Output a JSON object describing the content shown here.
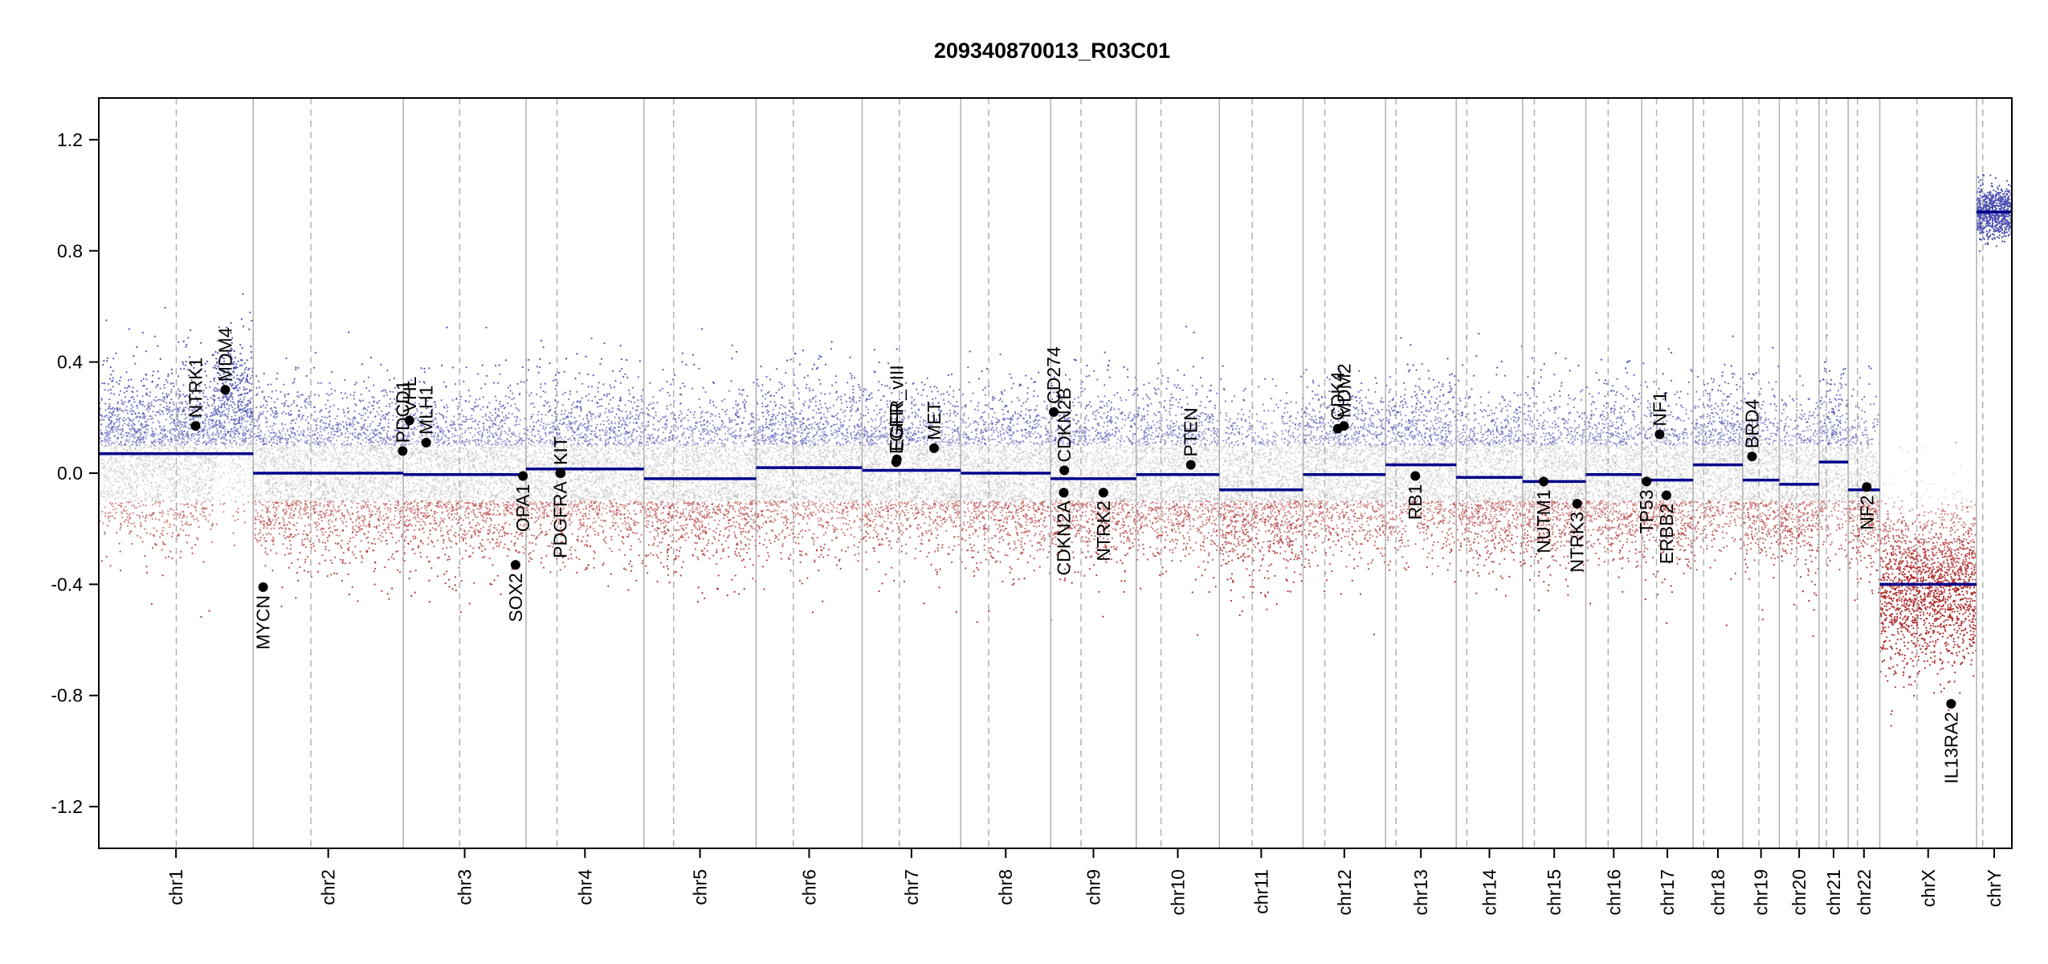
{
  "chart_data": {
    "type": "scatter",
    "title": "209340870013_R03C01",
    "ylim": [
      -1.35,
      1.35
    ],
    "y_ticks": [
      "1.2",
      "0.8",
      "0.4",
      "0.0",
      "-0.4",
      "-0.8",
      "-1.2"
    ],
    "y_tick_values": [
      1.2,
      0.8,
      0.4,
      0.0,
      -0.4,
      -0.8,
      -1.2
    ],
    "grid": "vertical chromosome boundaries (solid) and centromeres (dashed)",
    "colors": {
      "gain": "#4a4fb0",
      "neutral": "#b8b8b8",
      "loss": "#b03030",
      "segment": "#00008b",
      "border": "#000000"
    },
    "chromosomes": [
      {
        "name": "chr1",
        "length": 249,
        "centromere": 125,
        "segment": 0.07,
        "spread": 0.14
      },
      {
        "name": "chr2",
        "length": 242,
        "centromere": 93,
        "segment": 0.0,
        "spread": 0.14
      },
      {
        "name": "chr3",
        "length": 198,
        "centromere": 91,
        "segment": -0.005,
        "spread": 0.14
      },
      {
        "name": "chr4",
        "length": 190,
        "centromere": 50,
        "segment": 0.015,
        "spread": 0.14
      },
      {
        "name": "chr5",
        "length": 181,
        "centromere": 48,
        "segment": -0.02,
        "spread": 0.14
      },
      {
        "name": "chr6",
        "length": 171,
        "centromere": 60,
        "segment": 0.02,
        "spread": 0.14
      },
      {
        "name": "chr7",
        "length": 159,
        "centromere": 60,
        "segment": 0.01,
        "spread": 0.14
      },
      {
        "name": "chr8",
        "length": 145,
        "centromere": 45,
        "segment": 0.0,
        "spread": 0.14
      },
      {
        "name": "chr9",
        "length": 138,
        "centromere": 49,
        "segment": -0.02,
        "spread": 0.14
      },
      {
        "name": "chr10",
        "length": 134,
        "centromere": 40,
        "segment": -0.005,
        "spread": 0.14
      },
      {
        "name": "chr11",
        "length": 135,
        "centromere": 53,
        "segment": -0.06,
        "spread": 0.14
      },
      {
        "name": "chr12",
        "length": 133,
        "centromere": 35,
        "segment": -0.005,
        "spread": 0.14
      },
      {
        "name": "chr13",
        "length": 114,
        "centromere": 17,
        "segment": 0.03,
        "spread": 0.14
      },
      {
        "name": "chr14",
        "length": 107,
        "centromere": 17,
        "segment": -0.015,
        "spread": 0.14
      },
      {
        "name": "chr15",
        "length": 102,
        "centromere": 19,
        "segment": -0.03,
        "spread": 0.14
      },
      {
        "name": "chr16",
        "length": 90,
        "centromere": 36,
        "segment": -0.005,
        "spread": 0.14
      },
      {
        "name": "chr17",
        "length": 83,
        "centromere": 24,
        "segment": -0.025,
        "spread": 0.14
      },
      {
        "name": "chr18",
        "length": 80,
        "centromere": 17,
        "segment": 0.03,
        "spread": 0.14
      },
      {
        "name": "chr19",
        "length": 59,
        "centromere": 26,
        "segment": -0.025,
        "spread": 0.14
      },
      {
        "name": "chr20",
        "length": 64,
        "centromere": 28,
        "segment": -0.04,
        "spread": 0.14
      },
      {
        "name": "chr21",
        "length": 47,
        "centromere": 12,
        "segment": 0.04,
        "spread": 0.14
      },
      {
        "name": "chr22",
        "length": 51,
        "centromere": 15,
        "segment": -0.06,
        "spread": 0.14
      },
      {
        "name": "chrX",
        "length": 156,
        "centromere": 60,
        "segment": -0.4,
        "spread": 0.15
      },
      {
        "name": "chrY",
        "length": 57,
        "centromere": 10,
        "segment": 0.94,
        "spread": 0.05
      }
    ],
    "genes": [
      {
        "name": "NTRK1",
        "chrom": "chr1",
        "pos": 156,
        "value": 0.17,
        "label": "above"
      },
      {
        "name": "MDM4",
        "chrom": "chr1",
        "pos": 204,
        "value": 0.3,
        "label": "above"
      },
      {
        "name": "MYCN",
        "chrom": "chr2",
        "pos": 16,
        "value": -0.41,
        "label": "below"
      },
      {
        "name": "PDCD1",
        "chrom": "chr2",
        "pos": 241,
        "value": 0.08,
        "label": "above"
      },
      {
        "name": "VHL",
        "chrom": "chr3",
        "pos": 10,
        "value": 0.19,
        "label": "above"
      },
      {
        "name": "MLH1",
        "chrom": "chr3",
        "pos": 37,
        "value": 0.11,
        "label": "above"
      },
      {
        "name": "SOX2",
        "chrom": "chr3",
        "pos": 181,
        "value": -0.33,
        "label": "below"
      },
      {
        "name": "OPA1",
        "chrom": "chr3",
        "pos": 193,
        "value": -0.01,
        "label": "below"
      },
      {
        "name": "PDGFRA",
        "chrom": "chr4",
        "pos": 55,
        "value": 0.0,
        "label": "below"
      },
      {
        "name": "KIT",
        "chrom": "chr4",
        "pos": 56,
        "value": 0.0,
        "label": "above"
      },
      {
        "name": "EGFR",
        "chrom": "chr7",
        "pos": 55,
        "value": 0.04,
        "label": "above"
      },
      {
        "name": "EGFR_vIII",
        "chrom": "chr7",
        "pos": 56,
        "value": 0.05,
        "label": "above"
      },
      {
        "name": "MET",
        "chrom": "chr7",
        "pos": 116,
        "value": 0.09,
        "label": "above"
      },
      {
        "name": "CD274",
        "chrom": "chr9",
        "pos": 5,
        "value": 0.22,
        "label": "above"
      },
      {
        "name": "CDKN2B",
        "chrom": "chr9",
        "pos": 22,
        "value": 0.01,
        "label": "above"
      },
      {
        "name": "CDKN2A",
        "chrom": "chr9",
        "pos": 21,
        "value": -0.07,
        "label": "below"
      },
      {
        "name": "NTRK2",
        "chrom": "chr9",
        "pos": 85,
        "value": -0.07,
        "label": "below"
      },
      {
        "name": "PTEN",
        "chrom": "chr10",
        "pos": 88,
        "value": 0.03,
        "label": "above"
      },
      {
        "name": "CDK4",
        "chrom": "chr12",
        "pos": 56,
        "value": 0.16,
        "label": "above"
      },
      {
        "name": "MDM2",
        "chrom": "chr12",
        "pos": 66,
        "value": 0.17,
        "label": "above"
      },
      {
        "name": "RB1",
        "chrom": "chr13",
        "pos": 48,
        "value": -0.01,
        "label": "below"
      },
      {
        "name": "NUTM1",
        "chrom": "chr15",
        "pos": 34,
        "value": -0.03,
        "label": "below"
      },
      {
        "name": "NTRK3",
        "chrom": "chr15",
        "pos": 88,
        "value": -0.11,
        "label": "below"
      },
      {
        "name": "TP53",
        "chrom": "chr17",
        "pos": 8,
        "value": -0.03,
        "label": "below"
      },
      {
        "name": "NF1",
        "chrom": "chr17",
        "pos": 29,
        "value": 0.14,
        "label": "above"
      },
      {
        "name": "ERBB2",
        "chrom": "chr17",
        "pos": 40,
        "value": -0.08,
        "label": "below"
      },
      {
        "name": "BRD4",
        "chrom": "chr19",
        "pos": 15,
        "value": 0.06,
        "label": "above"
      },
      {
        "name": "NF2",
        "chrom": "chr22",
        "pos": 30,
        "value": -0.05,
        "label": "below"
      },
      {
        "name": "IL13RA2",
        "chrom": "chrX",
        "pos": 115,
        "value": -0.83,
        "label": "below"
      }
    ]
  }
}
